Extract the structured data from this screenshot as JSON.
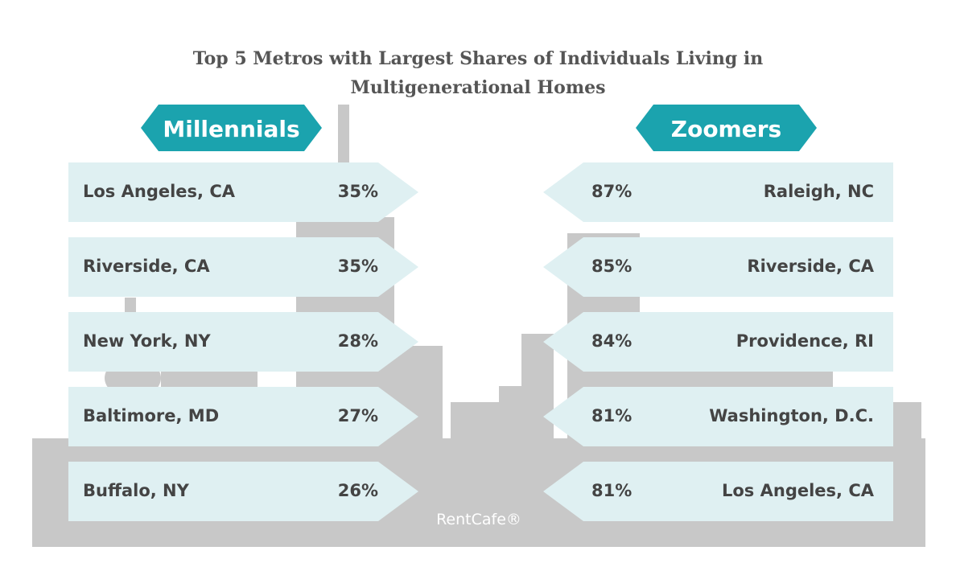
{
  "header": {
    "title_line1": "Top 5 Metros with Largest Shares of Individuals Living in",
    "title_line2": "Multigenerational Homes"
  },
  "panels": [
    {
      "label": "Millennials",
      "rows": [
        {
          "metro": "Los Angeles, CA",
          "share": "35%"
        },
        {
          "metro": "Riverside, CA",
          "share": "35%"
        },
        {
          "metro": "New York, NY",
          "share": "28%"
        },
        {
          "metro": "Baltimore, MD",
          "share": "27%"
        },
        {
          "metro": "Buffalo, NY",
          "share": "26%"
        }
      ]
    },
    {
      "label": "Zoomers",
      "rows": [
        {
          "metro": "Raleigh, NC",
          "share": "87%"
        },
        {
          "metro": "Riverside, CA",
          "share": "85%"
        },
        {
          "metro": "Providence, RI",
          "share": "84%"
        },
        {
          "metro": "Washington, D.C.",
          "share": "81%"
        },
        {
          "metro": "Los Angeles, CA",
          "share": "81%"
        }
      ]
    }
  ],
  "footer": {
    "brand": "RentCafe®"
  }
}
